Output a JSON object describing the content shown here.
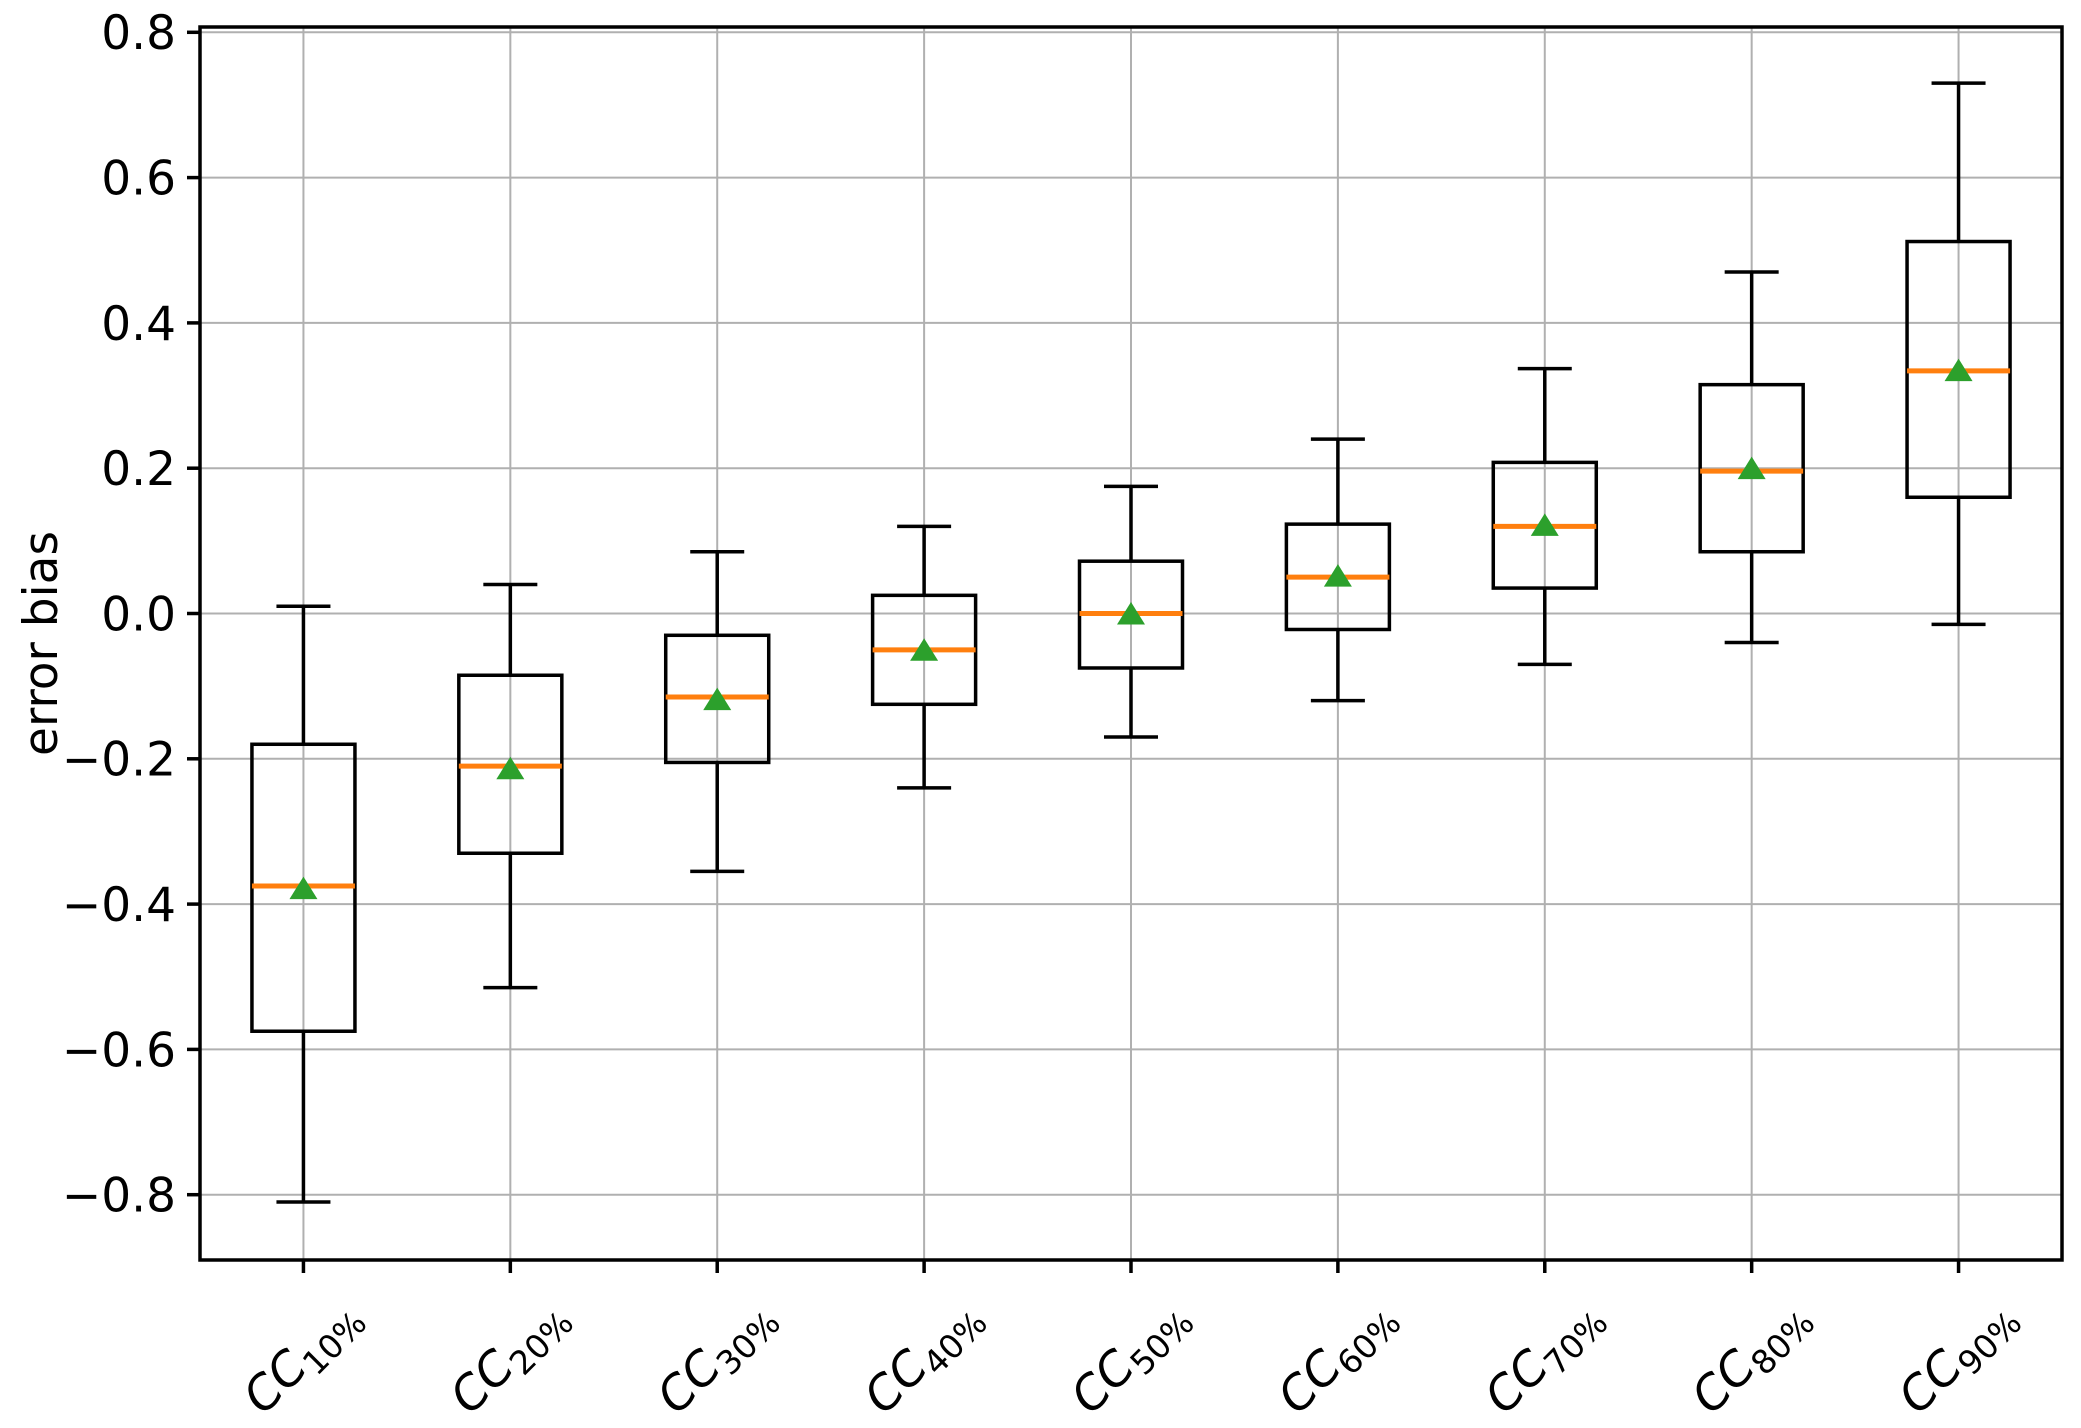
{
  "chart_data": {
    "type": "boxplot",
    "title": "",
    "xlabel": "",
    "ylabel": "error bias",
    "grid": true,
    "legend": "none",
    "ylim": [
      -0.89,
      0.81
    ],
    "y_ticks": [
      {
        "v": 0.8,
        "label": "0.8"
      },
      {
        "v": 0.6,
        "label": "0.6"
      },
      {
        "v": 0.4,
        "label": "0.4"
      },
      {
        "v": 0.2,
        "label": "0.2"
      },
      {
        "v": 0.0,
        "label": "0.0"
      },
      {
        "v": -0.2,
        "label": "−0.2"
      },
      {
        "v": -0.4,
        "label": "−0.4"
      },
      {
        "v": -0.6,
        "label": "−0.6"
      },
      {
        "v": -0.8,
        "label": "−0.8"
      }
    ],
    "categories": [
      "CC10%",
      "CC20%",
      "CC30%",
      "CC40%",
      "CC50%",
      "CC60%",
      "CC70%",
      "CC80%",
      "CC90%"
    ],
    "category_parts": [
      {
        "base": "CC",
        "sub": "10%"
      },
      {
        "base": "CC",
        "sub": "20%"
      },
      {
        "base": "CC",
        "sub": "30%"
      },
      {
        "base": "CC",
        "sub": "40%"
      },
      {
        "base": "CC",
        "sub": "50%"
      },
      {
        "base": "CC",
        "sub": "60%"
      },
      {
        "base": "CC",
        "sub": "70%"
      },
      {
        "base": "CC",
        "sub": "80%"
      },
      {
        "base": "CC",
        "sub": "90%"
      }
    ],
    "series": [
      {
        "label": "CC10%",
        "whislo": -0.81,
        "q1": -0.575,
        "med": -0.375,
        "q3": -0.18,
        "whishi": 0.01,
        "mean": -0.38
      },
      {
        "label": "CC20%",
        "whislo": -0.515,
        "q1": -0.33,
        "med": -0.21,
        "q3": -0.085,
        "whishi": 0.04,
        "mean": -0.215
      },
      {
        "label": "CC30%",
        "whislo": -0.355,
        "q1": -0.205,
        "med": -0.115,
        "q3": -0.03,
        "whishi": 0.085,
        "mean": -0.12
      },
      {
        "label": "CC40%",
        "whislo": -0.24,
        "q1": -0.125,
        "med": -0.05,
        "q3": 0.025,
        "whishi": 0.12,
        "mean": -0.052
      },
      {
        "label": "CC50%",
        "whislo": -0.17,
        "q1": -0.075,
        "med": 0.0,
        "q3": 0.072,
        "whishi": 0.175,
        "mean": -0.002
      },
      {
        "label": "CC60%",
        "whislo": -0.12,
        "q1": -0.022,
        "med": 0.05,
        "q3": 0.123,
        "whishi": 0.24,
        "mean": 0.05
      },
      {
        "label": "CC70%",
        "whislo": -0.07,
        "q1": 0.035,
        "med": 0.12,
        "q3": 0.208,
        "whishi": 0.337,
        "mean": 0.12
      },
      {
        "label": "CC80%",
        "whislo": -0.04,
        "q1": 0.085,
        "med": 0.196,
        "q3": 0.315,
        "whishi": 0.47,
        "mean": 0.198
      },
      {
        "label": "CC90%",
        "whislo": -0.015,
        "q1": 0.16,
        "med": 0.334,
        "q3": 0.512,
        "whishi": 0.73,
        "mean": 0.333
      }
    ],
    "colors": {
      "box_line": "#000000",
      "median": "#ff7f0e",
      "mean_marker": "#2ca02c",
      "grid": "#b0b0b0",
      "background": "#ffffff",
      "text": "#000000"
    },
    "marker_shapes": {
      "mean": "triangle-up-icon"
    }
  }
}
